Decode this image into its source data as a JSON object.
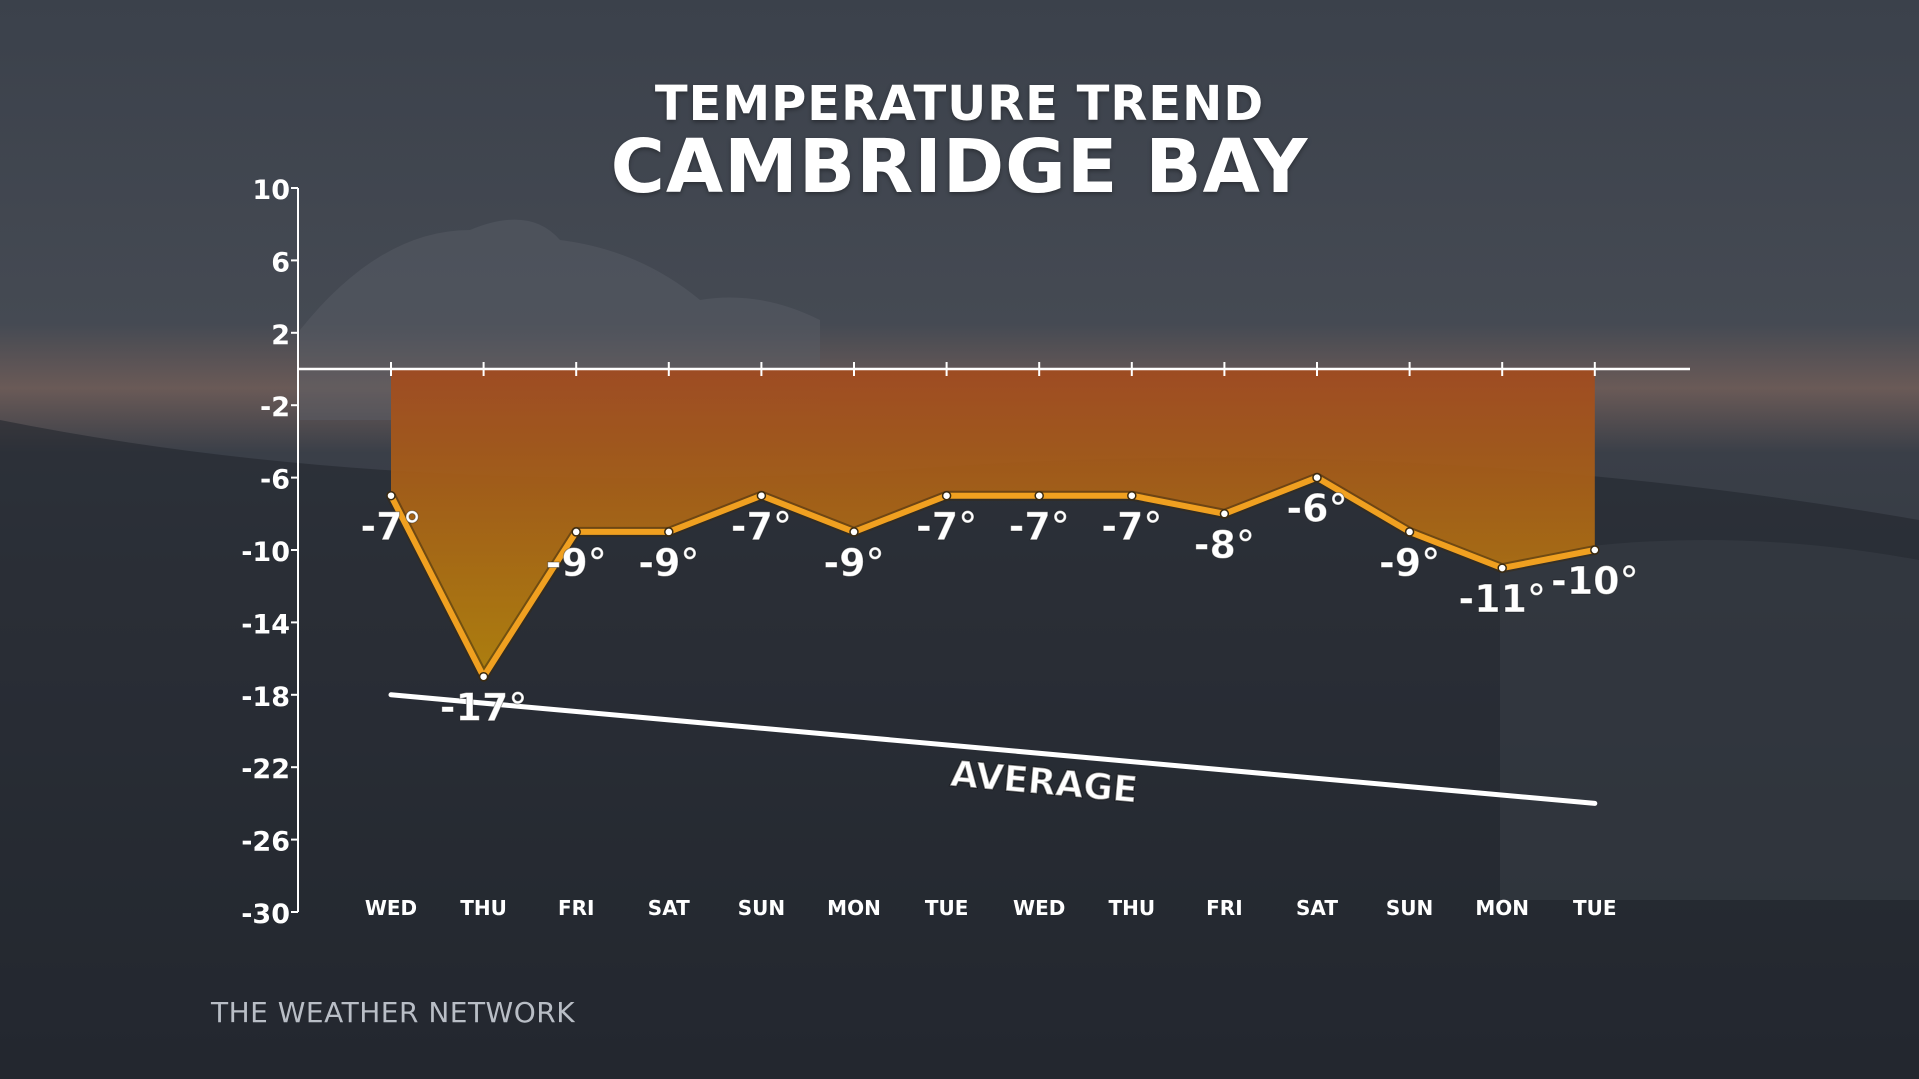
{
  "header": {
    "title": "TEMPERATURE TREND",
    "subtitle": "CAMBRIDGE BAY"
  },
  "footer": {
    "brand": "THE WEATHER NETWORK"
  },
  "colors": {
    "area_top": "#a24a1e",
    "area_bottom": "#b8860b",
    "line": "#f0a020",
    "axis": "#ffffff",
    "text": "#ffffff"
  },
  "chart_data": {
    "type": "area",
    "title": "TEMPERATURE TREND",
    "subtitle": "CAMBRIDGE BAY",
    "xlabel": "",
    "ylabel": "",
    "categories": [
      "WED",
      "THU",
      "FRI",
      "SAT",
      "SUN",
      "MON",
      "TUE",
      "WED",
      "THU",
      "FRI",
      "SAT",
      "SUN",
      "MON",
      "TUE"
    ],
    "y_ticks": [
      10,
      6,
      2,
      -2,
      -6,
      -10,
      -14,
      -18,
      -22,
      -26,
      -30
    ],
    "y_tick_labels": [
      "10",
      "6",
      "2",
      "-2",
      "-6",
      "-10",
      "-14",
      "-18",
      "-22",
      "-26",
      "-30"
    ],
    "ylim": [
      -30,
      10
    ],
    "grid": false,
    "legend": "none",
    "series": [
      {
        "values": [
          -7,
          -17,
          -9,
          -9,
          -7,
          -9,
          -7,
          -7,
          -7,
          -8,
          -6,
          -9,
          -11,
          -10
        ],
        "labels": [
          "-7°",
          "-17°",
          "-9°",
          "-9°",
          "-7°",
          "-9°",
          "-7°",
          "-7°",
          "-7°",
          "-8°",
          "-6°",
          "-9°",
          "-11°",
          "-10°"
        ]
      }
    ],
    "average": {
      "label": "AVERAGE",
      "start": -18,
      "end": -24
    }
  }
}
